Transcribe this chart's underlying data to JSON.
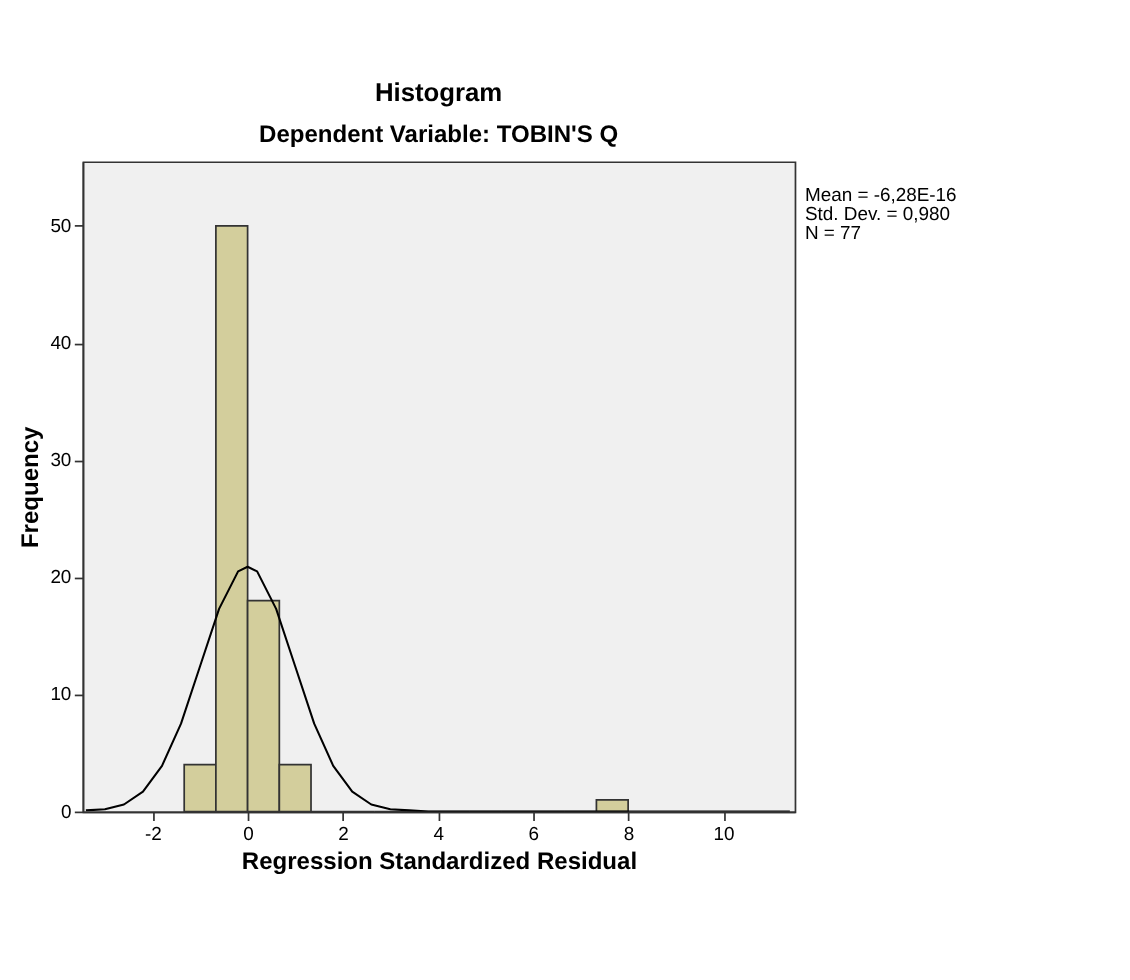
{
  "chart_data": {
    "type": "histogram",
    "title": "Histogram",
    "subtitle": "Dependent Variable: TOBIN'S Q",
    "xlabel": "Regression Standardized Residual",
    "ylabel": "Frequency",
    "bins": [
      -1.333,
      -0.667,
      0,
      0.667,
      1.333,
      2,
      2.667,
      3.333,
      4,
      4.667,
      5.333,
      6,
      6.667,
      7.333,
      8
    ],
    "series": [
      {
        "color": "#d3ce9c",
        "values": [
          4,
          50,
          18,
          4,
          0,
          0,
          0,
          0,
          0,
          0,
          0,
          0,
          0,
          1
        ]
      },
      {
        "type": "line",
        "color": "#000000",
        "x": [
          -3.4,
          -3.0,
          -2.6,
          -2.2,
          -1.8,
          -1.4,
          -1.0,
          -0.6,
          -0.2,
          0,
          0.2,
          0.6,
          1.0,
          1.4,
          1.8,
          2.2,
          2.6,
          3.0,
          3.4,
          3.8,
          11.4
        ],
        "values": [
          0.1,
          0.2,
          0.6,
          1.7,
          3.9,
          7.5,
          12.4,
          17.3,
          20.5,
          20.9,
          20.5,
          17.3,
          12.4,
          7.5,
          3.9,
          1.7,
          0.6,
          0.2,
          0.1,
          0,
          0
        ]
      }
    ],
    "xlim": [
      -3.47,
      11.5
    ],
    "xticks": [
      -2,
      0,
      2,
      4,
      6,
      8,
      10
    ],
    "ylim": [
      0,
      55.5
    ],
    "yticks": [
      0,
      10,
      20,
      30,
      40,
      50
    ],
    "grid": false,
    "marker": "none",
    "line_style": "solid",
    "annotations": [
      "Mean = -6,28E-16",
      "Std. Dev. = 0,980",
      "N = 77"
    ]
  }
}
